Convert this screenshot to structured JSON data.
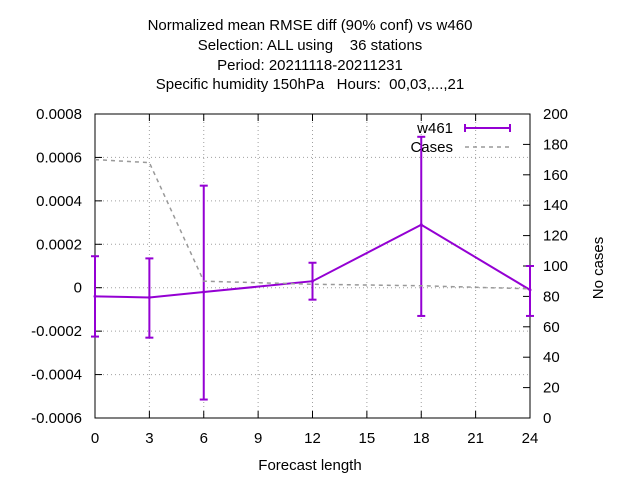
{
  "chart_data": {
    "type": "line",
    "title_lines": [
      "Normalized mean RMSE diff (90% conf) vs w460",
      "Selection: ALL using    36 stations",
      "Period: 20211118-20211231",
      "Specific humidity 150hPa   Hours:  00,03,...,21"
    ],
    "xlabel": "Forecast length",
    "ylabel": "",
    "y2label": "No cases",
    "xlim": [
      0,
      24
    ],
    "ylim": [
      -0.0006,
      0.0008
    ],
    "y2lim": [
      0,
      200
    ],
    "x_ticks": [
      "0",
      "3",
      "6",
      "9",
      "12",
      "15",
      "18",
      "21",
      "24"
    ],
    "y_ticks": [
      "-0.0006",
      "-0.0004",
      "-0.0002",
      "0",
      "0.0002",
      "0.0004",
      "0.0006",
      "0.0008"
    ],
    "y2_ticks": [
      "0",
      "20",
      "40",
      "60",
      "80",
      "100",
      "120",
      "140",
      "160",
      "180",
      "200"
    ],
    "grid": true,
    "legend_position": "top-right",
    "series": [
      {
        "name": "w461",
        "axis": "y",
        "color": "#9400d3",
        "style": "solid-errorbars",
        "x": [
          0,
          3,
          6,
          12,
          18,
          24
        ],
        "values": [
          -4e-05,
          -4.5e-05,
          -2e-05,
          3e-05,
          0.00029,
          -1e-05
        ],
        "err_low": [
          -0.000225,
          -0.00023,
          -0.000515,
          -5.5e-05,
          -0.00013,
          -0.00013
        ],
        "err_high": [
          0.000145,
          0.000135,
          0.00047,
          0.000115,
          0.000695,
          0.0001
        ]
      },
      {
        "name": "Cases",
        "axis": "y2",
        "color": "#999999",
        "style": "dashed",
        "x": [
          0,
          3,
          6,
          12,
          18,
          24
        ],
        "values": [
          170,
          168,
          90,
          88,
          87,
          85
        ]
      }
    ]
  }
}
